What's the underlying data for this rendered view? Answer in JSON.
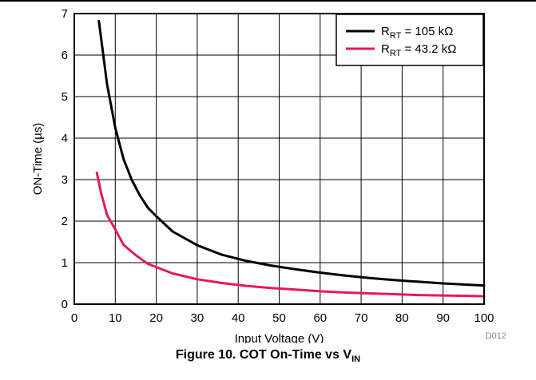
{
  "caption": {
    "text": "Figure 10. COT On-Time vs V",
    "sub": "IN"
  },
  "figure_id": "D012",
  "chart_data": {
    "type": "line",
    "xlabel": "Input Voltage (V)",
    "ylabel": "ON-Time (µs)",
    "xlim": [
      0,
      100
    ],
    "ylim": [
      0,
      7
    ],
    "xticks": [
      0,
      10,
      20,
      30,
      40,
      50,
      60,
      70,
      80,
      90,
      100
    ],
    "yticks": [
      0,
      1,
      2,
      3,
      4,
      5,
      6,
      7
    ],
    "grid": true,
    "legend_position": "top-right",
    "series": [
      {
        "name": "R_RT = 105 kΩ",
        "name_main": "R",
        "name_sub": "RT",
        "name_rest": " = 105 kΩ",
        "color": "#000000",
        "x": [
          6,
          8,
          10,
          12,
          14,
          16,
          18,
          20,
          24,
          30,
          36,
          42,
          48,
          54,
          60,
          66,
          72,
          78,
          84,
          90,
          96,
          100
        ],
        "y": [
          6.82,
          5.3,
          4.25,
          3.5,
          3.0,
          2.62,
          2.32,
          2.12,
          1.75,
          1.42,
          1.19,
          1.04,
          0.93,
          0.84,
          0.76,
          0.69,
          0.63,
          0.58,
          0.54,
          0.5,
          0.47,
          0.45
        ]
      },
      {
        "name": "R_RT = 43.2 kΩ",
        "name_main": "R",
        "name_sub": "RT",
        "name_rest": " = 43.2 kΩ",
        "color": "#e6195a",
        "x": [
          5.5,
          6.5,
          8,
          10,
          12,
          15,
          18,
          24,
          30,
          36,
          42,
          48,
          54,
          60,
          66,
          72,
          78,
          84,
          90,
          96,
          100
        ],
        "y": [
          3.17,
          2.7,
          2.15,
          1.8,
          1.43,
          1.18,
          0.97,
          0.74,
          0.6,
          0.51,
          0.44,
          0.39,
          0.35,
          0.31,
          0.28,
          0.26,
          0.24,
          0.22,
          0.21,
          0.2,
          0.19
        ]
      }
    ]
  }
}
